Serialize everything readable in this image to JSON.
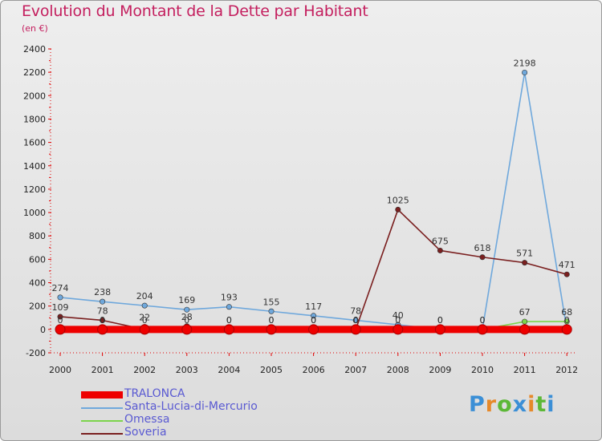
{
  "title": "Evolution du Montant de la Dette par Habitant",
  "subtitle": "(en €)",
  "logo": {
    "p": "P",
    "r": "r",
    "o": "o",
    "x": "x",
    "i1": "i",
    "t": "t",
    "i2": "i"
  },
  "chart_data": {
    "type": "line",
    "x": [
      "2000",
      "2001",
      "2002",
      "2003",
      "2004",
      "2005",
      "2006",
      "2007",
      "2008",
      "2009",
      "2010",
      "2011",
      "2012"
    ],
    "ylim": [
      -200,
      2400
    ],
    "yticks": [
      -200,
      0,
      200,
      400,
      600,
      800,
      1000,
      1200,
      1400,
      1600,
      1800,
      2000,
      2200,
      2400
    ],
    "grid": false,
    "legend_position": "bottom-left",
    "series": [
      {
        "name": "TRALONCA",
        "color": "#ee0000",
        "values": [
          0,
          0,
          0,
          0,
          0,
          0,
          0,
          0,
          0,
          0,
          0,
          0,
          0
        ],
        "labels": [
          null,
          null,
          null,
          null,
          null,
          null,
          null,
          null,
          null,
          null,
          null,
          null,
          null
        ]
      },
      {
        "name": "Santa-Lucia-di-Mercurio",
        "color": "#6fa8dc",
        "values": [
          274,
          238,
          204,
          169,
          193,
          155,
          117,
          78,
          40,
          0,
          0,
          2198,
          0
        ],
        "labels": [
          "274",
          "238",
          "204",
          "169",
          "193",
          "155",
          "117",
          "78",
          "40",
          "0",
          "0",
          "2198",
          "0"
        ]
      },
      {
        "name": "Omessa",
        "color": "#7cd44c",
        "values": [
          0,
          0,
          22,
          0,
          0,
          0,
          0,
          0,
          0,
          0,
          0,
          67,
          68
        ],
        "labels": [
          "0",
          "0",
          "22",
          "0",
          "0",
          "0",
          "0",
          "0",
          "0",
          "0",
          "0",
          "67",
          "68"
        ]
      },
      {
        "name": "Soveria",
        "color": "#7a1f1f",
        "values": [
          109,
          78,
          0,
          28,
          0,
          0,
          0,
          0,
          1025,
          675,
          618,
          571,
          471
        ],
        "labels": [
          "109",
          "78",
          "0",
          "28",
          "0",
          "0",
          "0",
          "0",
          "1025",
          "675",
          "618",
          "571",
          "471"
        ]
      }
    ]
  }
}
